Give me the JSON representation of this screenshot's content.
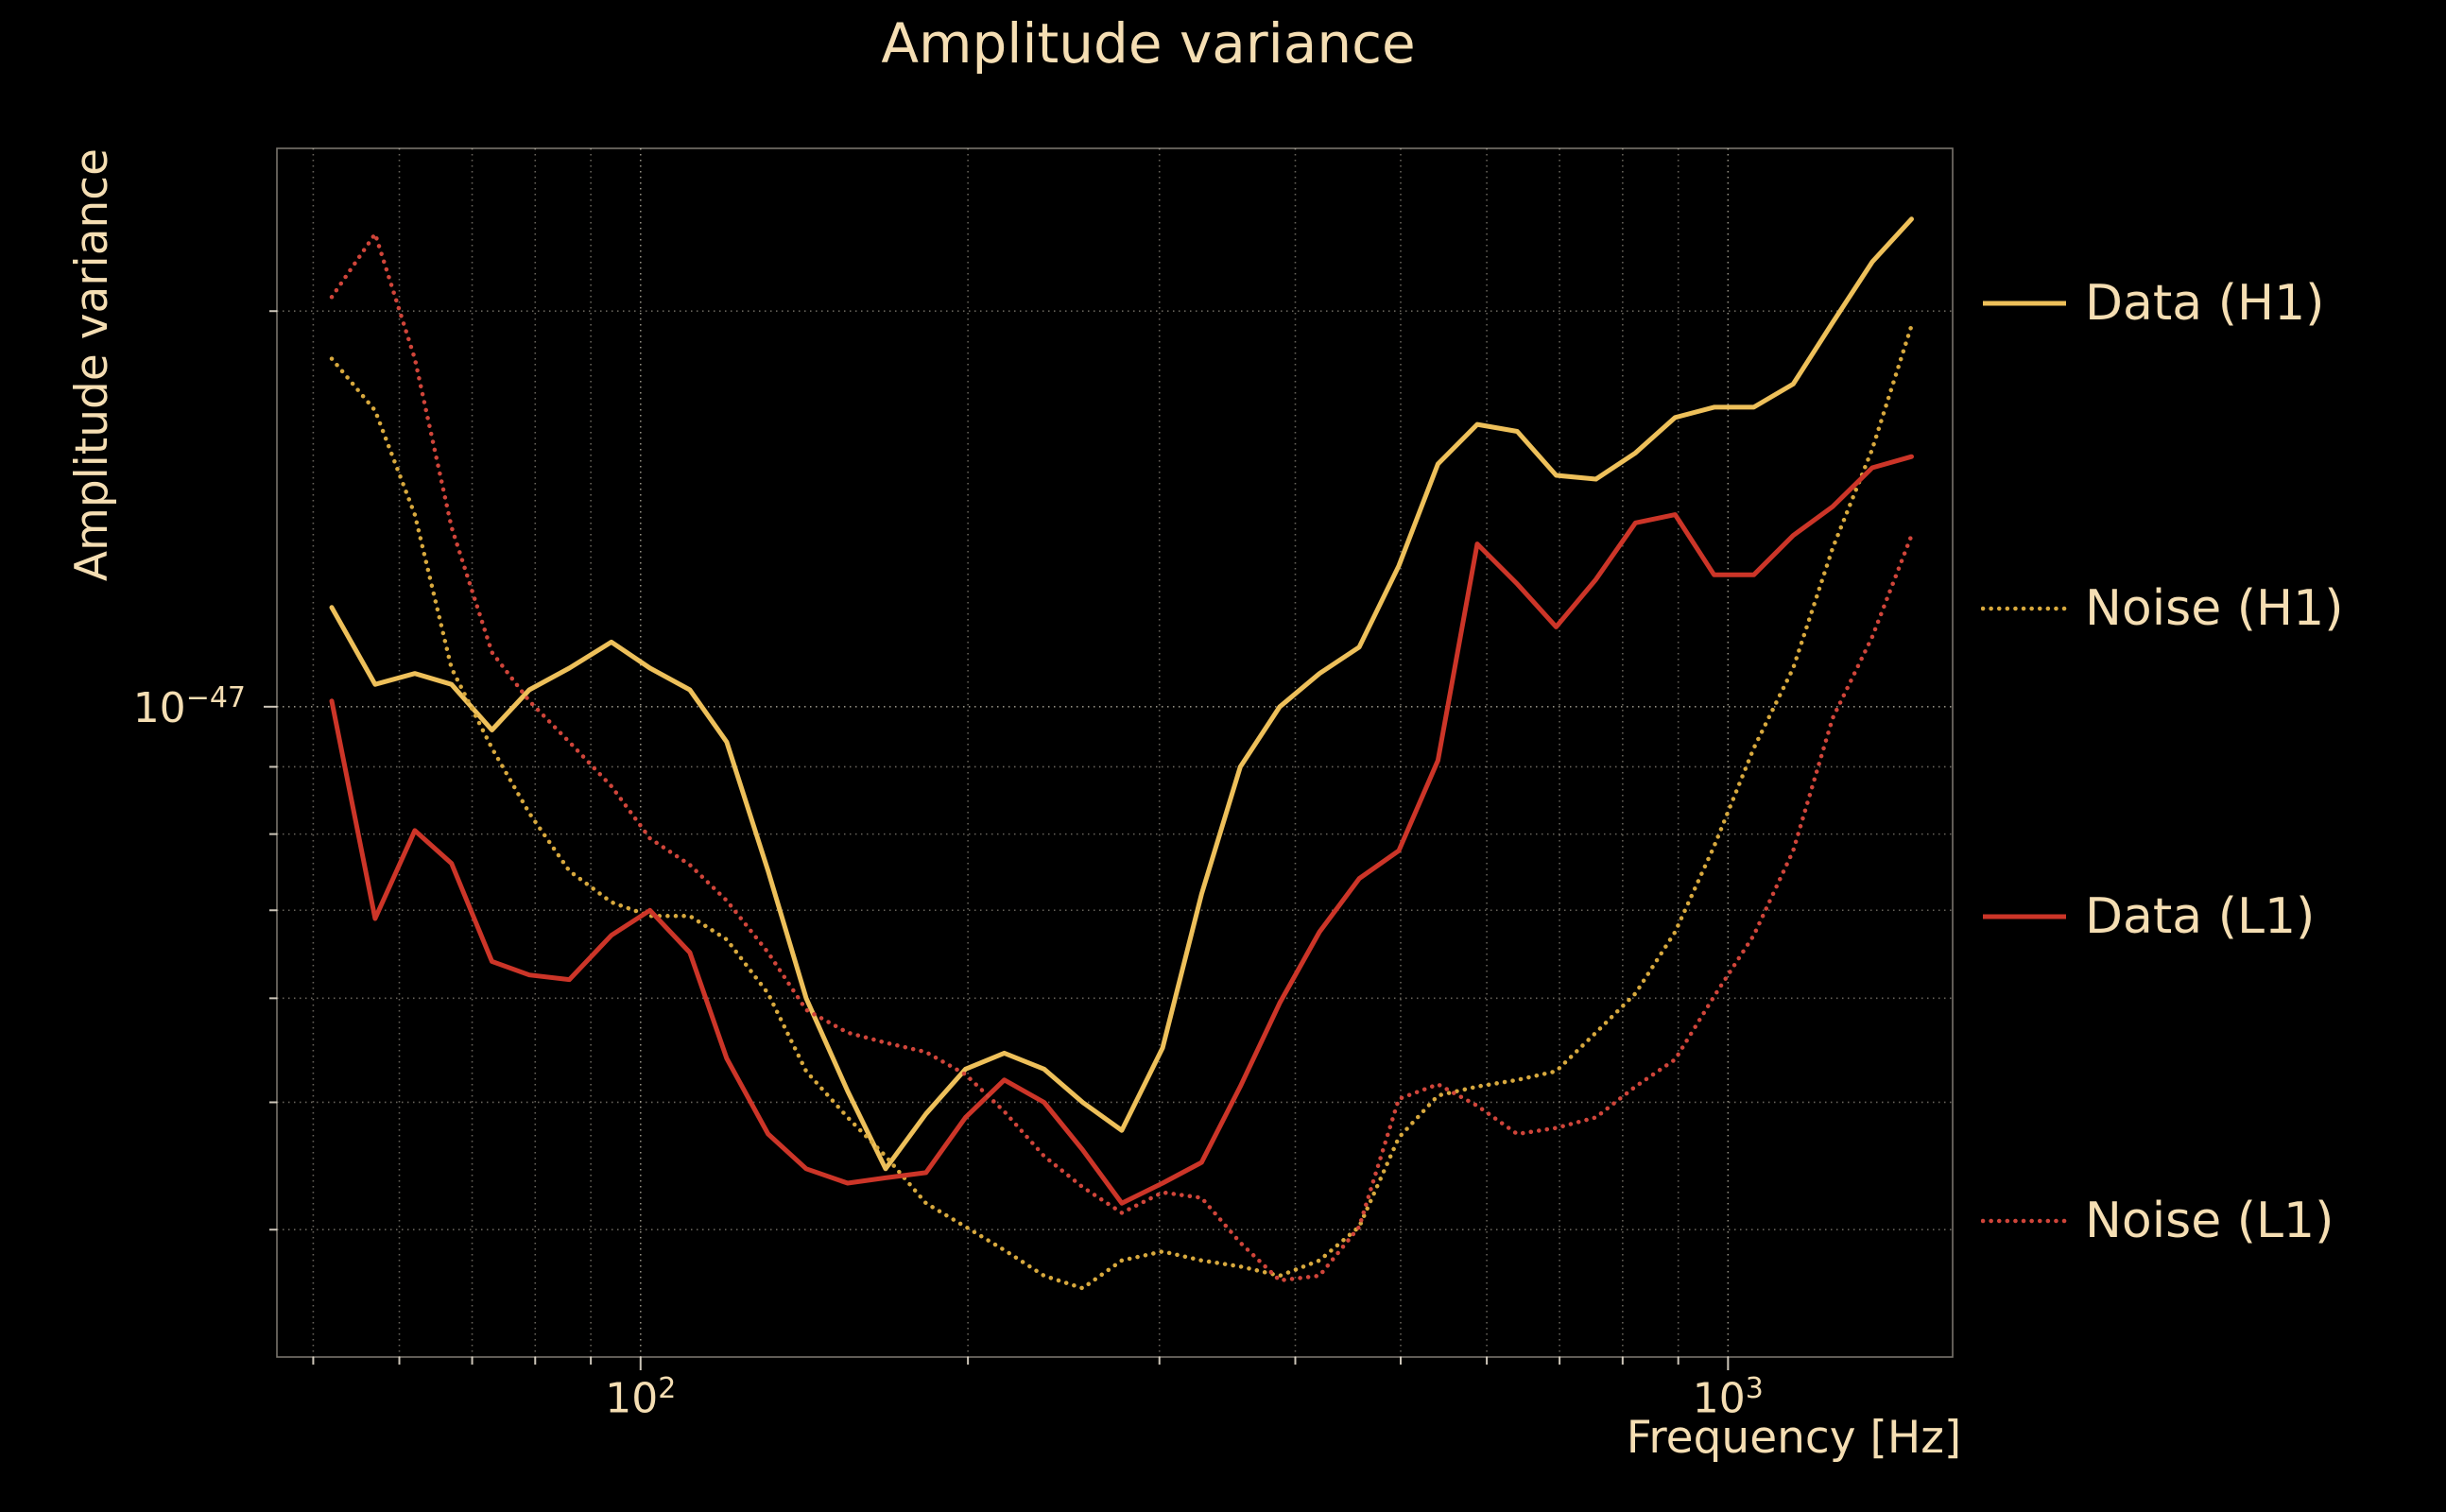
{
  "figure": {
    "background": "#000000",
    "text_color": "#f5deb3"
  },
  "chart_data": {
    "type": "line",
    "title": "Amplitude variance",
    "xlabel": "Frequency [Hz]",
    "ylabel": "Amplitude variance",
    "x_scale": "log",
    "y_scale": "log",
    "grid": true,
    "legend_position": "right-outside",
    "xlim": [
      46.3,
      1609
    ],
    "ylim": [
      3.2e-48,
      2.66e-47
    ],
    "x_ticks": [
      {
        "base": "10",
        "exp": "2",
        "value": 100
      },
      {
        "base": "10",
        "exp": "3",
        "value": 1000
      }
    ],
    "y_ticks": [
      {
        "base": "10",
        "exp": "−47",
        "value": 1e-47
      }
    ],
    "x": [
      52,
      57,
      62,
      67,
      73,
      79,
      86,
      94,
      102,
      111,
      120,
      131,
      142,
      155,
      168,
      183,
      199,
      216,
      235,
      255,
      277,
      302,
      328,
      356,
      387,
      421,
      458,
      498,
      541,
      588,
      640,
      695,
      756,
      822,
      894,
      971,
      1056,
      1148,
      1248,
      1357,
      1475
    ],
    "value_scale": 1e-48,
    "series": [
      {
        "name": "Data (H1)",
        "style": "solid",
        "color": "#eec05a",
        "values": [
          11.9,
          10.4,
          10.6,
          10.4,
          9.6,
          10.3,
          10.7,
          11.2,
          10.7,
          10.3,
          9.4,
          7.5,
          6.0,
          5.1,
          4.45,
          4.9,
          5.3,
          5.45,
          5.3,
          5.0,
          4.76,
          5.5,
          7.2,
          9.0,
          10.0,
          10.6,
          11.1,
          12.8,
          15.3,
          16.4,
          16.2,
          15.0,
          14.9,
          15.6,
          16.6,
          16.9,
          16.9,
          17.6,
          19.6,
          21.8,
          23.5
        ]
      },
      {
        "name": "Noise (H1)",
        "style": "dotted",
        "color": "#d8a93e",
        "values": [
          18.4,
          16.8,
          14.0,
          10.7,
          9.3,
          8.3,
          7.5,
          7.1,
          6.93,
          6.93,
          6.65,
          6.05,
          5.28,
          4.87,
          4.55,
          4.19,
          4.02,
          3.86,
          3.69,
          3.61,
          3.79,
          3.85,
          3.79,
          3.75,
          3.69,
          3.79,
          4.02,
          4.7,
          5.06,
          5.14,
          5.2,
          5.28,
          5.65,
          6.05,
          6.74,
          7.83,
          9.3,
          10.7,
          13.2,
          15.7,
          19.5
        ]
      },
      {
        "name": "Data (L1)",
        "style": "solid",
        "color": "#cc3528",
        "values": [
          10.1,
          6.9,
          8.05,
          7.6,
          6.4,
          6.25,
          6.2,
          6.7,
          7.0,
          6.5,
          5.4,
          4.73,
          4.45,
          4.34,
          4.38,
          4.42,
          4.87,
          5.2,
          5.0,
          4.6,
          4.19,
          4.34,
          4.5,
          5.14,
          5.95,
          6.74,
          7.4,
          7.77,
          9.1,
          13.3,
          12.4,
          11.5,
          12.5,
          13.8,
          14.0,
          12.6,
          12.6,
          13.5,
          14.2,
          15.2,
          15.5
        ]
      },
      {
        "name": "Noise (L1)",
        "style": "dotted",
        "color": "#d0453a",
        "values": [
          20.5,
          22.9,
          18.4,
          13.7,
          11.0,
          10.1,
          9.4,
          8.7,
          7.94,
          7.58,
          7.12,
          6.5,
          5.88,
          5.65,
          5.55,
          5.46,
          5.25,
          4.92,
          4.55,
          4.31,
          4.12,
          4.27,
          4.23,
          3.91,
          3.66,
          3.69,
          4.02,
          5.03,
          5.16,
          4.97,
          4.73,
          4.78,
          4.87,
          5.14,
          5.39,
          6.02,
          6.7,
          7.77,
          9.8,
          11.3,
          13.5
        ]
      }
    ]
  }
}
